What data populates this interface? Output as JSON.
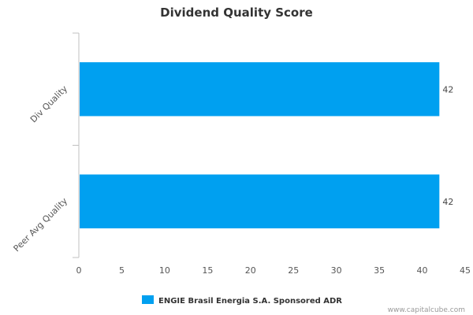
{
  "chart_data": {
    "type": "bar",
    "orientation": "horizontal",
    "title": "Dividend Quality Score",
    "categories": [
      "Div Quality",
      "Peer Avg Quality"
    ],
    "series": [
      {
        "name": "ENGIE Brasil Energia S.A. Sponsored ADR",
        "values": [
          42,
          42
        ],
        "color": "#00a0f0"
      }
    ],
    "data_labels": [
      "42",
      "42"
    ],
    "xlim": [
      0,
      45
    ],
    "x_ticks": [
      "0",
      "5",
      "10",
      "15",
      "20",
      "25",
      "30",
      "35",
      "40",
      "45"
    ],
    "grid": false,
    "legend_position": "bottom-center"
  },
  "credit": "www.capitalcube.com"
}
